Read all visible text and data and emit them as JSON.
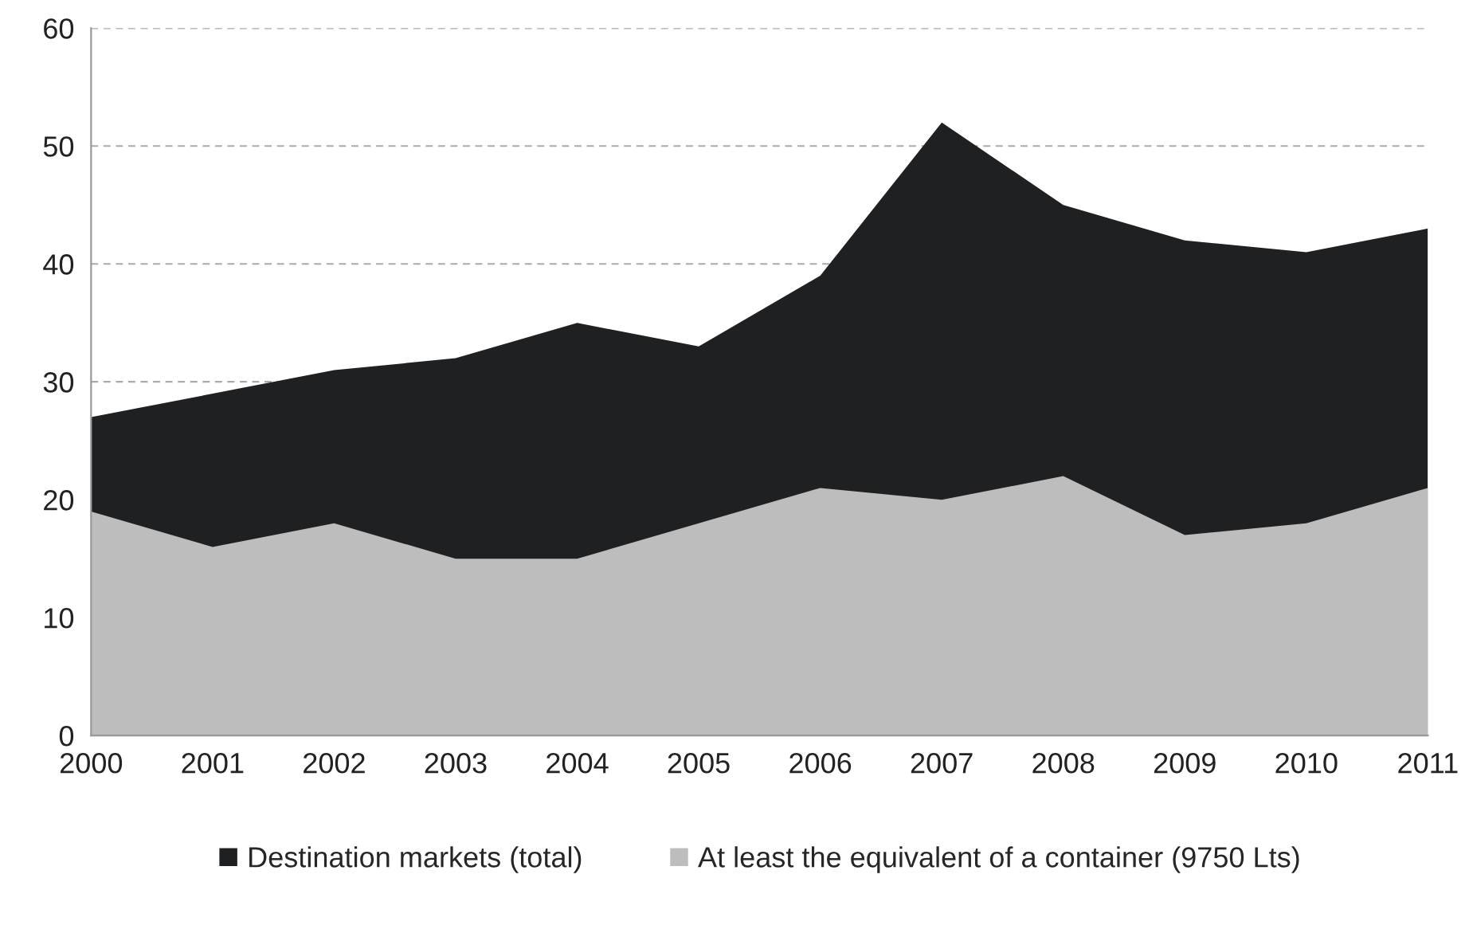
{
  "chart_data": {
    "type": "area",
    "x": [
      2000,
      2001,
      2002,
      2003,
      2004,
      2005,
      2006,
      2007,
      2008,
      2009,
      2010,
      2011
    ],
    "series": [
      {
        "name": "Destination markets (total)",
        "color": "#1f2022",
        "values": [
          27,
          29,
          31,
          32,
          35,
          33,
          39,
          52,
          45,
          42,
          41,
          43
        ]
      },
      {
        "name": "At least the equivalent of a container (9750 Lts)",
        "color": "#bdbdbd",
        "values": [
          19,
          16,
          18,
          15,
          15,
          18,
          21,
          20,
          22,
          17,
          18,
          21
        ]
      }
    ],
    "xlim": [
      2000,
      2011
    ],
    "xticks": [
      2000,
      2001,
      2002,
      2003,
      2004,
      2005,
      2006,
      2007,
      2008,
      2009,
      2010,
      2011
    ],
    "ylim": [
      0,
      60
    ],
    "yticks": [
      0,
      10,
      20,
      30,
      40,
      50,
      60
    ],
    "grid": "y",
    "legend": "bottom"
  }
}
